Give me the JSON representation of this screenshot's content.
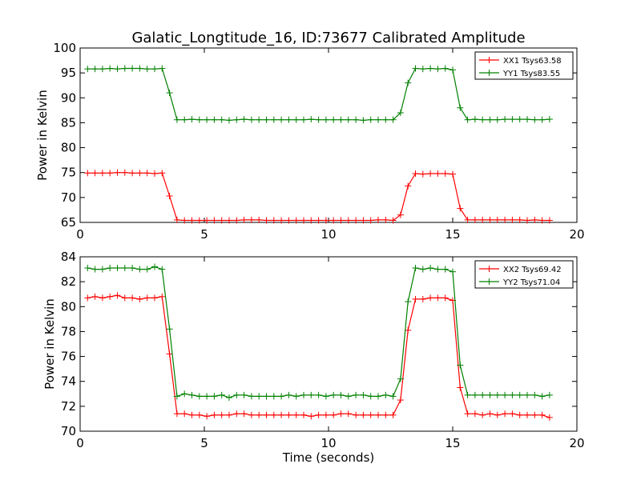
{
  "figure": {
    "title": "Galatic_Longtitude_16, ID:73677 Calibrated Amplitude"
  },
  "chart_data": [
    {
      "type": "line",
      "xlabel": "",
      "ylabel": "Power in Kelvin",
      "xlim": [
        0,
        20
      ],
      "ylim": [
        65,
        100
      ],
      "xticks": [
        0,
        5,
        10,
        15,
        20
      ],
      "yticks": [
        65,
        70,
        75,
        80,
        85,
        90,
        95,
        100
      ],
      "grid": false,
      "legend_position": "top-right",
      "x": [
        0.3,
        0.6,
        0.9,
        1.2,
        1.5,
        1.8,
        2.1,
        2.4,
        2.7,
        3.0,
        3.3,
        3.6,
        3.9,
        4.2,
        4.5,
        4.8,
        5.1,
        5.4,
        5.7,
        6.0,
        6.3,
        6.6,
        6.9,
        7.2,
        7.5,
        7.8,
        8.1,
        8.4,
        8.7,
        9.0,
        9.3,
        9.6,
        9.9,
        10.2,
        10.5,
        10.8,
        11.1,
        11.4,
        11.7,
        12.0,
        12.3,
        12.6,
        12.9,
        13.2,
        13.5,
        13.8,
        14.1,
        14.4,
        14.7,
        15.0,
        15.3,
        15.6,
        15.9,
        16.2,
        16.5,
        16.8,
        17.1,
        17.4,
        17.7,
        18.0,
        18.3,
        18.6,
        18.9
      ],
      "series": [
        {
          "name": "XX1 Tsys63.58",
          "color": "#ff0000",
          "values": [
            74.9,
            74.9,
            74.9,
            74.9,
            75.0,
            75.0,
            74.9,
            74.9,
            74.9,
            74.8,
            74.9,
            70.3,
            65.5,
            65.4,
            65.4,
            65.4,
            65.4,
            65.4,
            65.4,
            65.4,
            65.4,
            65.5,
            65.5,
            65.5,
            65.4,
            65.4,
            65.4,
            65.4,
            65.4,
            65.4,
            65.4,
            65.4,
            65.4,
            65.4,
            65.4,
            65.4,
            65.4,
            65.4,
            65.4,
            65.5,
            65.5,
            65.4,
            66.5,
            72.3,
            74.8,
            74.7,
            74.8,
            74.8,
            74.8,
            74.7,
            67.8,
            65.5,
            65.5,
            65.5,
            65.5,
            65.5,
            65.5,
            65.5,
            65.5,
            65.4,
            65.5,
            65.4,
            65.4
          ]
        },
        {
          "name": "YY1 Tsys83.55",
          "color": "#008000",
          "values": [
            95.8,
            95.8,
            95.8,
            95.9,
            95.8,
            95.9,
            95.9,
            95.9,
            95.8,
            95.8,
            95.9,
            91.0,
            85.6,
            85.6,
            85.7,
            85.6,
            85.6,
            85.6,
            85.6,
            85.5,
            85.6,
            85.7,
            85.6,
            85.6,
            85.6,
            85.6,
            85.6,
            85.6,
            85.6,
            85.6,
            85.7,
            85.6,
            85.6,
            85.6,
            85.6,
            85.6,
            85.6,
            85.5,
            85.6,
            85.6,
            85.6,
            85.6,
            87.0,
            93.0,
            95.9,
            95.8,
            95.9,
            95.8,
            95.9,
            95.6,
            88.0,
            85.6,
            85.7,
            85.6,
            85.6,
            85.6,
            85.7,
            85.7,
            85.7,
            85.7,
            85.6,
            85.6,
            85.7
          ]
        }
      ]
    },
    {
      "type": "line",
      "xlabel": "Time (seconds)",
      "ylabel": "Power in Kelvin",
      "xlim": [
        0,
        20
      ],
      "ylim": [
        70,
        84
      ],
      "xticks": [
        0,
        5,
        10,
        15,
        20
      ],
      "yticks": [
        70,
        72,
        74,
        76,
        78,
        80,
        82,
        84
      ],
      "grid": false,
      "legend_position": "top-right",
      "x": [
        0.3,
        0.6,
        0.9,
        1.2,
        1.5,
        1.8,
        2.1,
        2.4,
        2.7,
        3.0,
        3.3,
        3.6,
        3.9,
        4.2,
        4.5,
        4.8,
        5.1,
        5.4,
        5.7,
        6.0,
        6.3,
        6.6,
        6.9,
        7.2,
        7.5,
        7.8,
        8.1,
        8.4,
        8.7,
        9.0,
        9.3,
        9.6,
        9.9,
        10.2,
        10.5,
        10.8,
        11.1,
        11.4,
        11.7,
        12.0,
        12.3,
        12.6,
        12.9,
        13.2,
        13.5,
        13.8,
        14.1,
        14.4,
        14.7,
        15.0,
        15.3,
        15.6,
        15.9,
        16.2,
        16.5,
        16.8,
        17.1,
        17.4,
        17.7,
        18.0,
        18.3,
        18.6,
        18.9
      ],
      "series": [
        {
          "name": "XX2 Tsys69.42",
          "color": "#ff0000",
          "values": [
            80.7,
            80.8,
            80.7,
            80.8,
            80.9,
            80.7,
            80.7,
            80.6,
            80.7,
            80.7,
            80.8,
            76.2,
            71.4,
            71.4,
            71.3,
            71.3,
            71.2,
            71.3,
            71.3,
            71.3,
            71.4,
            71.4,
            71.3,
            71.3,
            71.3,
            71.3,
            71.3,
            71.3,
            71.3,
            71.3,
            71.2,
            71.3,
            71.3,
            71.3,
            71.4,
            71.4,
            71.3,
            71.3,
            71.3,
            71.3,
            71.3,
            71.3,
            72.5,
            78.1,
            80.6,
            80.6,
            80.7,
            80.7,
            80.7,
            80.5,
            73.5,
            71.4,
            71.4,
            71.3,
            71.4,
            71.3,
            71.4,
            71.4,
            71.3,
            71.3,
            71.3,
            71.3,
            71.1
          ]
        },
        {
          "name": "YY2 Tsys71.04",
          "color": "#008000",
          "values": [
            83.1,
            83.0,
            83.0,
            83.1,
            83.1,
            83.1,
            83.1,
            83.0,
            83.0,
            83.2,
            83.0,
            78.2,
            72.8,
            73.0,
            72.9,
            72.8,
            72.8,
            72.8,
            72.9,
            72.7,
            72.9,
            72.9,
            72.8,
            72.8,
            72.8,
            72.8,
            72.8,
            72.9,
            72.8,
            72.9,
            72.9,
            72.9,
            72.8,
            72.9,
            72.9,
            72.8,
            72.9,
            72.9,
            72.8,
            72.8,
            72.9,
            72.8,
            74.2,
            80.4,
            83.1,
            83.0,
            83.1,
            83.0,
            83.0,
            82.8,
            75.3,
            72.9,
            72.9,
            72.9,
            72.9,
            72.9,
            72.9,
            72.9,
            72.9,
            72.9,
            72.9,
            72.8,
            72.9
          ]
        }
      ]
    }
  ]
}
